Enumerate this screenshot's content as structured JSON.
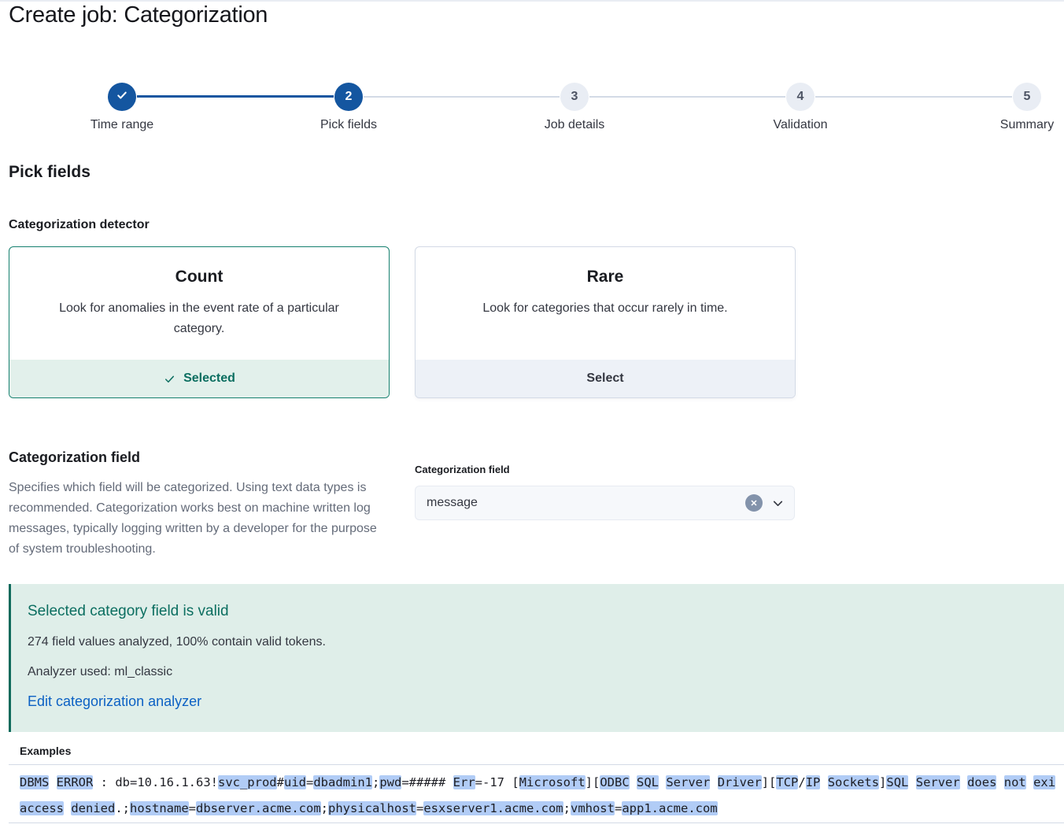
{
  "page": {
    "title": "Create job: Categorization"
  },
  "steps": {
    "items": [
      {
        "number": "1",
        "label": "Time range",
        "status": "complete"
      },
      {
        "number": "2",
        "label": "Pick fields",
        "status": "current"
      },
      {
        "number": "3",
        "label": "Job details",
        "status": "incomplete"
      },
      {
        "number": "4",
        "label": "Validation",
        "status": "incomplete"
      },
      {
        "number": "5",
        "label": "Summary",
        "status": "incomplete"
      }
    ]
  },
  "pick_fields": {
    "heading": "Pick fields"
  },
  "detector": {
    "heading": "Categorization detector",
    "cards": [
      {
        "title": "Count",
        "description": "Look for anomalies in the event rate of a particular category.",
        "footer_label": "Selected",
        "selected": true
      },
      {
        "title": "Rare",
        "description": "Look for categories that occur rarely in time.",
        "footer_label": "Select",
        "selected": false
      }
    ]
  },
  "field_section": {
    "heading": "Categorization field",
    "description": "Specifies which field will be categorized. Using text data types is recommended. Categorization works best on machine written log messages, typically logging written by a developer for the purpose of system troubleshooting.",
    "combo_label": "Categorization field",
    "combo_value": "message"
  },
  "callout": {
    "title": "Selected category field is valid",
    "analysis_summary": "274 field values analyzed, 100% contain valid tokens.",
    "analyzer_used": "Analyzer used: ml_classic",
    "link_label": "Edit categorization analyzer"
  },
  "examples": {
    "heading": "Examples",
    "lines": [
      [
        {
          "t": "DBMS",
          "h": true
        },
        {
          "t": " ",
          "h": false
        },
        {
          "t": "ERROR",
          "h": true
        },
        {
          "t": " : db=10.16.1.63!",
          "h": false
        },
        {
          "t": "svc_prod",
          "h": true
        },
        {
          "t": "#",
          "h": false
        },
        {
          "t": "uid",
          "h": true
        },
        {
          "t": "=",
          "h": false
        },
        {
          "t": "dbadmin1",
          "h": true
        },
        {
          "t": ";",
          "h": false
        },
        {
          "t": "pwd",
          "h": true
        },
        {
          "t": "=##### ",
          "h": false
        },
        {
          "t": "Err",
          "h": true
        },
        {
          "t": "=-17 [",
          "h": false
        },
        {
          "t": "Microsoft",
          "h": true
        },
        {
          "t": "][",
          "h": false
        },
        {
          "t": "ODBC",
          "h": true
        },
        {
          "t": " ",
          "h": false
        },
        {
          "t": "SQL",
          "h": true
        },
        {
          "t": " ",
          "h": false
        },
        {
          "t": "Server",
          "h": true
        },
        {
          "t": " ",
          "h": false
        },
        {
          "t": "Driver",
          "h": true
        },
        {
          "t": "][",
          "h": false
        },
        {
          "t": "TCP",
          "h": true
        },
        {
          "t": "/",
          "h": false
        },
        {
          "t": "IP",
          "h": true
        },
        {
          "t": " ",
          "h": false
        },
        {
          "t": "Sockets",
          "h": true
        },
        {
          "t": "]",
          "h": false
        },
        {
          "t": "SQL",
          "h": true
        },
        {
          "t": " ",
          "h": false
        },
        {
          "t": "Server",
          "h": true
        },
        {
          "t": " ",
          "h": false
        },
        {
          "t": "does",
          "h": true
        },
        {
          "t": " ",
          "h": false
        },
        {
          "t": "not",
          "h": true
        },
        {
          "t": " ",
          "h": false
        },
        {
          "t": "exi",
          "h": true
        }
      ],
      [
        {
          "t": "access",
          "h": true
        },
        {
          "t": " ",
          "h": false
        },
        {
          "t": "denied",
          "h": true
        },
        {
          "t": ".;",
          "h": false
        },
        {
          "t": "hostname",
          "h": true
        },
        {
          "t": "=",
          "h": false
        },
        {
          "t": "dbserver.acme.com",
          "h": true
        },
        {
          "t": ";",
          "h": false
        },
        {
          "t": "physicalhost",
          "h": true
        },
        {
          "t": "=",
          "h": false
        },
        {
          "t": "esxserver1.acme.com",
          "h": true
        },
        {
          "t": ";",
          "h": false
        },
        {
          "t": "vmhost",
          "h": true
        },
        {
          "t": "=",
          "h": false
        },
        {
          "t": "app1.acme.com",
          "h": true
        }
      ]
    ]
  },
  "colors": {
    "primary_blue": "#1456a0",
    "success_teal": "#0b6e60",
    "callout_bg": "#dfeee9",
    "token_highlight": "#b1ccf6",
    "link_blue": "#0c61c4"
  }
}
